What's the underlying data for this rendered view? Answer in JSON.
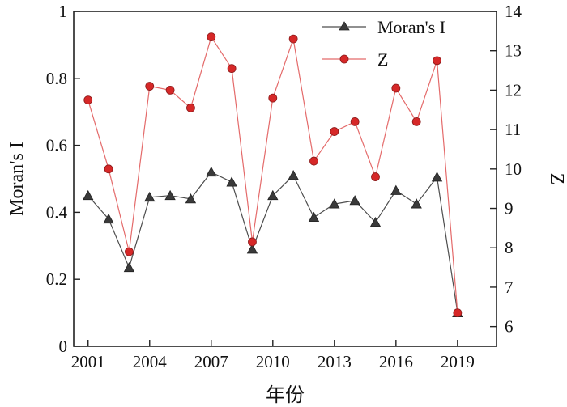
{
  "chart_data": {
    "type": "line",
    "xlabel": "年份",
    "ylabel_left": "Moran's I",
    "ylabel_right": "Z",
    "x": [
      2001,
      2002,
      2003,
      2004,
      2005,
      2006,
      2007,
      2008,
      2009,
      2010,
      2011,
      2012,
      2013,
      2014,
      2015,
      2016,
      2017,
      2018,
      2019
    ],
    "x_ticks": [
      "2001",
      "2004",
      "2007",
      "2010",
      "2013",
      "2016",
      "2019"
    ],
    "xlim": [
      2000.3,
      2020.9
    ],
    "y_left_ticks": [
      "0",
      "0.2",
      "0.4",
      "0.6",
      "0.8",
      "1"
    ],
    "ylim_left": [
      0,
      1
    ],
    "y_right_ticks": [
      "6",
      "7",
      "8",
      "9",
      "10",
      "11",
      "12",
      "13",
      "14"
    ],
    "ylim_right": [
      5.5,
      14
    ],
    "grid": false,
    "legend_position": "top-right",
    "series": [
      {
        "name": "Moran's I",
        "axis": "left",
        "marker": "triangle",
        "color": "#4d4d4d",
        "marker_color": "#3a3a3a",
        "values": [
          0.45,
          0.38,
          0.235,
          0.445,
          0.45,
          0.44,
          0.52,
          0.49,
          0.29,
          0.45,
          0.51,
          0.385,
          0.425,
          0.435,
          0.37,
          0.465,
          0.425,
          0.505,
          0.1
        ]
      },
      {
        "name": "Z",
        "axis": "right",
        "marker": "circle",
        "color": "#e46a6a",
        "marker_color": "#d62828",
        "values": [
          11.75,
          10.0,
          7.9,
          12.1,
          12.0,
          11.55,
          13.35,
          12.55,
          8.15,
          11.8,
          13.3,
          10.2,
          10.95,
          11.2,
          9.8,
          12.05,
          11.2,
          12.75,
          6.35
        ]
      }
    ]
  }
}
